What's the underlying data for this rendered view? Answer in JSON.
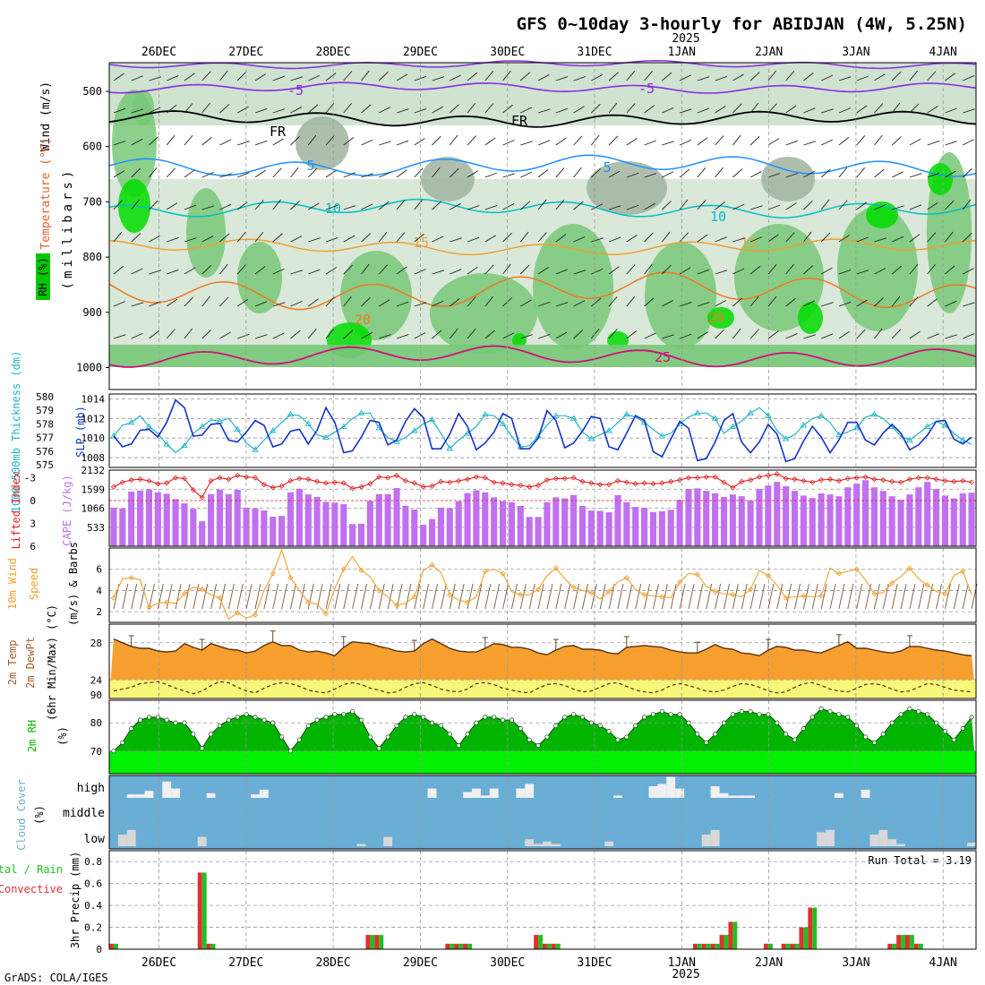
{
  "header": {
    "title": "GFS 0~10day 3-hourly for ABIDJAN (4W, 5.25N)",
    "year": "2025",
    "footer": "GrADS: COLA/IGES",
    "run_total": "Run Total = 3.19"
  },
  "dates": [
    "26DEC",
    "27DEC",
    "28DEC",
    "29DEC",
    "30DEC",
    "31DEC",
    "1JAN",
    "2JAN",
    "3JAN",
    "4JAN"
  ],
  "colors": {
    "rh_dark": "#00dc00",
    "rh_mid": "#78c878",
    "rh_light": "#c0d8c0",
    "rh_gray": "#a0b4a0",
    "purple": "#8a2be2",
    "blue": "#1e90ff",
    "cyan": "#00bfc8",
    "orange_t": "#f0a030",
    "orange_td": "#f07820",
    "magenta": "#d0107a",
    "slp_blue": "#1432c8",
    "thick_cyan": "#20b4c8",
    "cape": "#c070f0",
    "li_red": "#e02020",
    "wind_orange": "#f0a030",
    "temp_fill": "#f7a030",
    "dew_fill": "#f7f77a",
    "rh2_dark": "#00b400",
    "rh2_light": "#00f000",
    "cloud_blue": "#6aaed6",
    "cloud_white": "#f0f0f0",
    "precip_green": "#20c020",
    "precip_red": "#e03030"
  },
  "panels": {
    "upper": {
      "ylabel_units": "(millibars)",
      "levels": [
        "500",
        "600",
        "700",
        "800",
        "900",
        "1000"
      ],
      "legend_wind": "Wind (m/s)",
      "legend_temp": "Temperature (°C)",
      "legend_rh": "RH (%)",
      "contour_labels": [
        "-5",
        "-5",
        "FR",
        "FR",
        "5",
        "5",
        "10",
        "10",
        "15",
        "15",
        "20",
        "20",
        "25"
      ]
    },
    "slp": {
      "left_label": "1000-500mb Thickness (dm)",
      "right_label": "SLP (mb)",
      "thick_ticks": [
        "580",
        "579",
        "578",
        "577",
        "576",
        "575"
      ],
      "slp_ticks": [
        "1014",
        "1012",
        "1010",
        "1008"
      ]
    },
    "cape": {
      "left_label": "Lifted Index",
      "right_label": "CAPE (J/kg)",
      "li_ticks": [
        "-3",
        "0",
        "3",
        "6"
      ],
      "cape_ticks": [
        "2132",
        "1599",
        "1066",
        "533"
      ]
    },
    "wind10": {
      "label": "10m Wind",
      "label2": "Speed",
      "label3": "(m/s) & Barbs",
      "ticks": [
        "6",
        "4",
        "2"
      ]
    },
    "temp2m": {
      "label": "2m Temp",
      "label2": "2m DewPt",
      "label3": "(6hr Min/Max) (°C)",
      "ticks": [
        "28",
        "24",
        "90"
      ]
    },
    "rh2m": {
      "label": "2m RH",
      "units": "(%)",
      "ticks": [
        "80",
        "70"
      ]
    },
    "cloud": {
      "label": "Cloud Cover",
      "units": "(%)",
      "levels": [
        "high",
        "middle",
        "low"
      ]
    },
    "precip": {
      "label": "3hr Precip (mm)",
      "legend_total": "Total / Rain",
      "legend_conv": "Convective",
      "ticks": [
        "0.8",
        "0.6",
        "0.4",
        "0.2",
        "0"
      ]
    }
  },
  "chart_data": [
    {
      "type": "line",
      "title": "1000-500mb Thickness (dm) & SLP (mb)",
      "x_days": 10,
      "step_hours": 3,
      "series": [
        {
          "name": "SLP (mb)",
          "ylim": [
            1007,
            1014.5
          ],
          "values": [
            1010.2,
            1009.1,
            1009.4,
            1010.8,
            1010.9,
            1010.1,
            1011.6,
            1013.9,
            1013.1,
            1010.2,
            1010.3,
            1011.4,
            1011.5,
            1009.8,
            1009.6,
            1010.6,
            1011.8,
            1011.3,
            1009.1,
            1009.4,
            1010.7,
            1010.9,
            1009.4,
            1010.8,
            1013.1,
            1011.6,
            1008.5,
            1008.7,
            1010.1,
            1011.8,
            1011.6,
            1009.3,
            1009.8,
            1011.7,
            1013.0,
            1012.1,
            1008.9,
            1008.9,
            1010.4,
            1012.5,
            1011.2,
            1008.8,
            1009.5,
            1010.6,
            1012.5,
            1012.0,
            1008.9,
            1008.9,
            1010.0,
            1012.8,
            1011.8,
            1009.0,
            1009.5,
            1010.7,
            1012.2,
            1012.0,
            1009.1,
            1008.8,
            1010.5,
            1012.3,
            1011.8,
            1008.6,
            1008.1,
            1009.9,
            1011.7,
            1011.0,
            1007.7,
            1007.9,
            1009.6,
            1011.8,
            1012.5,
            1009.6,
            1008.5,
            1009.6,
            1011.4,
            1010.4,
            1007.6,
            1007.9,
            1009.7,
            1011.2,
            1010.1,
            1008.5,
            1009.8,
            1011.6,
            1011.6,
            1009.8,
            1009.3,
            1010.5,
            1011.4,
            1010.5,
            1008.8,
            1009.3,
            1010.3,
            1011.7,
            1011.8,
            1009.9,
            1009.4,
            1010.1
          ]
        },
        {
          "name": "Thickness (dm)",
          "ylim": [
            574.8,
            580.2
          ],
          "values": [
            577.1,
            577.9,
            578.1,
            578.6,
            577.8,
            577.3,
            576.5,
            575.9,
            576.4,
            577.3,
            577.8,
            578.3,
            578.2,
            578.4,
            577.6,
            576.6,
            576.1,
            576.8,
            577.5,
            578.1,
            578.7,
            578.6,
            578.0,
            577.2,
            577.0,
            577.4,
            577.8,
            578.4,
            578.8,
            578.8,
            577.7,
            577.0,
            576.7,
            577.0,
            577.5,
            578.0,
            578.3,
            577.3,
            576.2,
            576.8,
            577.3,
            577.8,
            578.7,
            578.6,
            578.0,
            577.1,
            576.3,
            576.4,
            577.1,
            577.9,
            578.6,
            578.6,
            578.4,
            577.4,
            576.9,
            577.2,
            577.5,
            578.1,
            578.7,
            578.5,
            578.1,
            577.6,
            577.1,
            577.3,
            578.0,
            578.5,
            578.8,
            578.8,
            578.4,
            577.3,
            577.8,
            578.2,
            578.8,
            579.2,
            578.6,
            577.5,
            576.9,
            577.2,
            577.9,
            578.4,
            578.6,
            578.1,
            577.2,
            577.4,
            577.7,
            578.5,
            578.7,
            578.4,
            577.8,
            577.1,
            576.8,
            577.3,
            577.8,
            578.2,
            577.9,
            577.3,
            576.8,
            576.5
          ]
        }
      ]
    },
    {
      "type": "bar",
      "title": "CAPE (J/kg) & Lifted Index",
      "series": [
        {
          "name": "CAPE (J/kg)",
          "ylim": [
            0,
            2132
          ],
          "values": [
            1080,
            1060,
            1530,
            1560,
            1590,
            1510,
            1470,
            1320,
            1200,
            1050,
            700,
            1460,
            1590,
            1460,
            1580,
            1080,
            1060,
            1000,
            830,
            850,
            1510,
            1610,
            1450,
            1380,
            1240,
            1220,
            1180,
            620,
            630,
            1270,
            1460,
            1460,
            1630,
            1130,
            1030,
            600,
            760,
            1080,
            1070,
            1260,
            1490,
            1570,
            1510,
            1370,
            1260,
            1230,
            1130,
            820,
            820,
            1230,
            1370,
            1340,
            1430,
            1130,
            1000,
            990,
            950,
            1430,
            1230,
            1100,
            1080,
            960,
            980,
            1020,
            1300,
            1600,
            1620,
            1550,
            1480,
            1380,
            1450,
            1400,
            1280,
            1600,
            1700,
            1800,
            1680,
            1550,
            1420,
            1350,
            1480,
            1450,
            1400,
            1650,
            1750,
            1850,
            1650,
            1550,
            1400,
            1300,
            1450,
            1650,
            1800,
            1600,
            1420,
            1340,
            1480,
            1500
          ]
        },
        {
          "name": "Lifted Index",
          "ylim": [
            6,
            -4
          ],
          "values": [
            -1.8,
            -2.4,
            -2.7,
            -2.8,
            -2.6,
            -2.2,
            -2.3,
            -3.0,
            -2.9,
            -1.4,
            -0.4,
            -2.6,
            -3.0,
            -2.8,
            -3.3,
            -3.1,
            -3.0,
            -2.1,
            -1.7,
            -1.9,
            -2.6,
            -2.9,
            -2.8,
            -2.5,
            -2.3,
            -2.4,
            -2.3,
            -1.6,
            -1.8,
            -2.2,
            -3.1,
            -3.0,
            -3.3,
            -2.6,
            -2.3,
            -1.8,
            -1.9,
            -2.5,
            -2.4,
            -2.6,
            -2.8,
            -3.1,
            -3.0,
            -2.4,
            -2.3,
            -2.1,
            -2.0,
            -1.8,
            -2.0,
            -2.7,
            -2.9,
            -2.9,
            -3.0,
            -2.5,
            -2.3,
            -2.1,
            -2.1,
            -2.6,
            -2.4,
            -2.2,
            -2.3,
            -2.2,
            -2.3,
            -2.5,
            -2.7,
            -3.0,
            -3.0,
            -3.1,
            -3.1,
            -2.4,
            -1.7,
            -2.5,
            -2.7,
            -3.1,
            -3.3,
            -3.5,
            -2.9,
            -2.8,
            -2.6,
            -2.4,
            -2.7,
            -2.8,
            -2.6,
            -2.9,
            -3.0,
            -3.1,
            -2.8,
            -2.7,
            -2.5,
            -2.4,
            -2.8,
            -3.0,
            -3.0,
            -2.8,
            -2.6,
            -2.5,
            -2.6,
            -2.4
          ]
        }
      ]
    },
    {
      "type": "line",
      "title": "10m Wind Speed (m/s)",
      "ylim": [
        1,
        8
      ],
      "series": [
        {
          "name": "10m Wind Speed",
          "values": [
            3.3,
            5.1,
            5.2,
            5.0,
            2.4,
            2.8,
            2.9,
            2.8,
            3.7,
            4.3,
            4.1,
            3.6,
            3.3,
            1.3,
            1.9,
            1.4,
            1.7,
            4.0,
            5.6,
            7.8,
            5.2,
            4.0,
            2.9,
            2.7,
            1.8,
            4.2,
            6.0,
            7.2,
            5.9,
            5.3,
            4.0,
            3.4,
            2.6,
            2.8,
            3.4,
            5.9,
            6.4,
            5.7,
            3.6,
            3.1,
            2.9,
            3.4,
            5.8,
            6.0,
            5.6,
            3.9,
            3.6,
            3.6,
            4.1,
            5.4,
            6.1,
            5.1,
            4.3,
            4.0,
            3.8,
            3.2,
            3.9,
            4.8,
            5.2,
            4.1,
            3.6,
            3.5,
            3.4,
            3.3,
            4.8,
            5.6,
            5.5,
            4.4,
            3.9,
            3.7,
            3.6,
            3.4,
            4.1,
            5.9,
            5.4,
            4.5,
            3.3,
            3.4,
            3.5,
            3.4,
            3.5,
            6.1,
            5.6,
            5.8,
            6.0,
            5.0,
            3.7,
            3.8,
            4.7,
            5.3,
            6.1,
            5.1,
            4.5,
            3.9,
            3.7,
            5.4,
            5.8,
            3.6
          ]
        }
      ]
    },
    {
      "type": "area",
      "title": "2m Temp & 2m DewPt (°C)",
      "ylim": [
        22,
        30
      ],
      "series": [
        {
          "name": "2m Temp",
          "values": [
            28.4,
            28.0,
            27.6,
            27.4,
            27.4,
            27.1,
            27.0,
            27.1,
            27.9,
            27.5,
            27.2,
            27.9,
            27.6,
            27.3,
            27.2,
            26.9,
            27.1,
            27.7,
            28.1,
            27.7,
            27.7,
            27.2,
            27.0,
            27.1,
            26.9,
            26.6,
            27.5,
            28.1,
            28.0,
            27.9,
            27.6,
            27.4,
            27.1,
            27.0,
            27.1,
            27.9,
            28.4,
            27.9,
            27.4,
            27.1,
            27.0,
            27.0,
            27.4,
            27.9,
            27.8,
            27.5,
            27.5,
            27.3,
            26.9,
            26.7,
            27.2,
            27.6,
            27.7,
            27.3,
            27.3,
            27.2,
            26.9,
            26.8,
            27.5,
            27.6,
            27.7,
            27.6,
            27.5,
            27.2,
            27.0,
            26.9,
            26.9,
            27.3,
            27.8,
            27.4,
            27.3,
            26.9,
            26.8,
            26.6,
            27.2,
            27.6,
            27.5,
            27.2,
            27.2,
            27.0,
            26.9,
            27.3,
            27.7,
            28.1,
            27.4,
            27.4,
            27.2,
            27.0,
            26.9,
            27.1,
            27.6,
            27.6,
            27.4,
            27.2,
            27.1,
            26.9,
            26.7,
            26.6
          ]
        },
        {
          "name": "2m DewPt",
          "values": [
            22.8,
            23.0,
            23.2,
            23.6,
            23.7,
            23.8,
            23.5,
            23.1,
            22.8,
            22.5,
            22.8,
            23.4,
            23.8,
            23.7,
            23.2,
            22.8,
            22.6,
            23.1,
            23.5,
            23.7,
            23.6,
            23.3,
            22.9,
            22.7,
            22.6,
            23.0,
            23.5,
            23.7,
            23.5,
            23.1,
            22.9,
            22.6,
            22.7,
            23.2,
            23.6,
            23.7,
            23.4,
            23.0,
            22.8,
            22.7,
            23.0,
            23.6,
            23.7,
            23.5,
            23.1,
            22.9,
            22.7,
            22.6,
            23.1,
            23.5,
            23.6,
            23.4,
            23.0,
            22.7,
            22.8,
            23.2,
            23.6,
            23.7,
            23.3,
            22.9,
            22.7,
            22.6,
            22.9,
            23.4,
            23.6,
            23.4,
            23.1,
            22.8,
            22.7,
            22.9,
            23.3,
            23.6,
            23.5,
            23.2,
            22.8,
            22.6,
            22.7,
            23.2,
            23.6,
            23.7,
            23.4,
            23.0,
            22.8,
            22.7,
            23.1,
            23.5,
            23.6,
            23.4,
            23.0,
            22.7,
            22.8,
            23.2,
            23.6,
            23.5,
            23.2,
            22.9,
            22.8,
            22.7
          ]
        }
      ]
    },
    {
      "type": "area",
      "title": "2m RH (%)",
      "ylim": [
        62,
        88
      ],
      "series": [
        {
          "name": "2m RH",
          "values": [
            70,
            73,
            78,
            81,
            82,
            82,
            81,
            80,
            80,
            76,
            71,
            76,
            79,
            81,
            82,
            83,
            82,
            81,
            80,
            75,
            70,
            74,
            79,
            81,
            82,
            83,
            83,
            84,
            81,
            75,
            71,
            75,
            79,
            82,
            83,
            82,
            80,
            79,
            76,
            72,
            76,
            80,
            82,
            82,
            81,
            81,
            78,
            74,
            72,
            75,
            79,
            82,
            83,
            82,
            80,
            79,
            77,
            74,
            75,
            79,
            82,
            83,
            84,
            83,
            83,
            80,
            76,
            73,
            76,
            80,
            83,
            84,
            84,
            83,
            83,
            80,
            76,
            74,
            78,
            82,
            85,
            84,
            83,
            82,
            79,
            75,
            73,
            76,
            80,
            83,
            85,
            84,
            83,
            80,
            77,
            74,
            78,
            82
          ]
        }
      ]
    }
  ]
}
